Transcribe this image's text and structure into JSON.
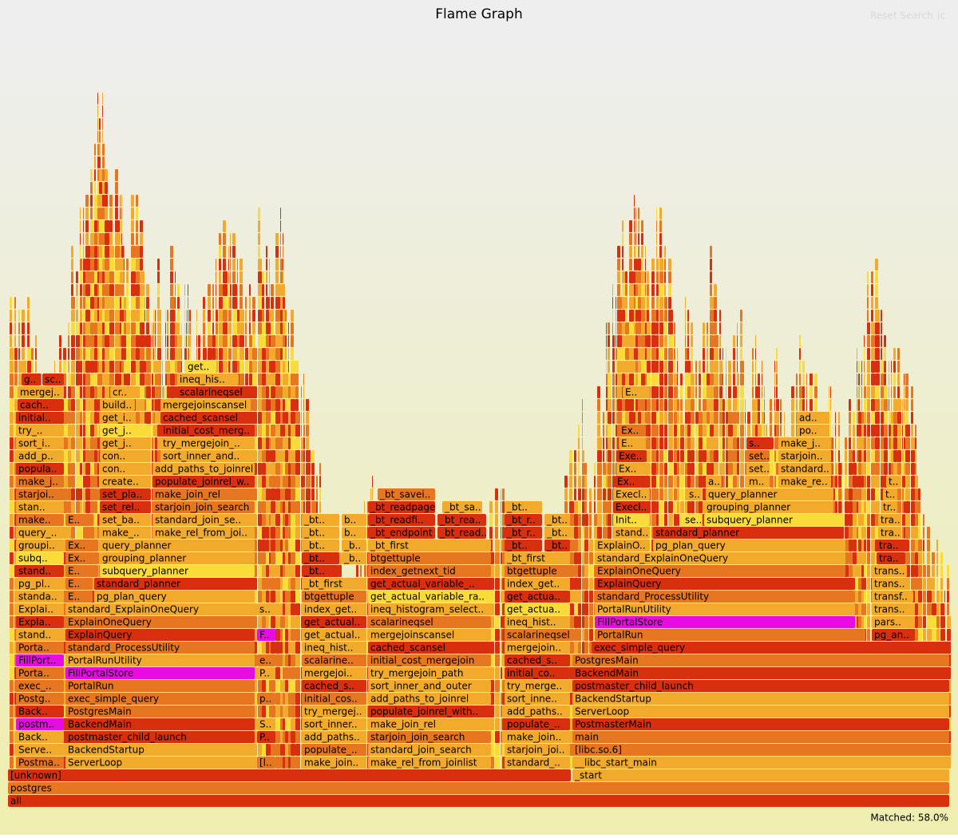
{
  "title": "Flame Graph",
  "reset_search": "Reset Search",
  "ignore_case": "ic",
  "matched": "Matched: 58.0%",
  "frames": [
    "all",
    "postgres",
    "[unknown]",
    "_start",
    "Postma..",
    "ServerLoop",
    "[l..",
    "make_join..",
    "make_rel_from_joinlist",
    "standard_..",
    "__libc_start_main",
    "Serve..",
    "BackendStartup",
    "populate_..",
    "standard_join_search",
    "starjoin_joi..",
    "[libc.so.6]",
    "Back..",
    "postmaster_child_launch",
    "P..",
    "add_paths..",
    "starjoin_join_search",
    "make_join..",
    "main",
    "postm..",
    "BackendMain",
    "S..",
    "sort_inner..",
    "make_join_rel",
    "populate_..",
    "PostmasterMain",
    "Back..",
    "PostgresMain",
    "try_mergej..",
    "populate_joinrel_with..",
    "add_paths..",
    "ServerLoop",
    "Postg..",
    "exec_simple_query",
    "p..",
    "initial_cos..",
    "add_paths_to_joinrel",
    "sort_inne..",
    "BackendStartup",
    "exec_..",
    "PortalRun",
    "cached_s..",
    "sort_inner_and_outer",
    "try_merge..",
    "postmaster_child_launch",
    "Porta..",
    "FillPortalStore",
    "P..",
    "mergejoi..",
    "try_mergejoin_path",
    "initial_co..",
    "BackendMain",
    "FillPort..",
    "PortalRunUtility",
    "e..",
    "scalarine..",
    "initial_cost_mergejoin",
    "cached_s..",
    "PostgresMain",
    "Porta..",
    "standard_ProcessUtility",
    "ineq_hist..",
    "cached_scansel",
    "mergejoin..",
    "exec_simple_query",
    "stand..",
    "ExplainQuery",
    "F..",
    "get_actual..",
    "mergejoinscansel",
    "scalarineqsel",
    "PortalRun",
    "pg_an..",
    "Expla..",
    "ExplainOneQuery",
    "get_actual..",
    "scalarineqsel",
    "ineq_hist..",
    "FillPortalStore",
    "pars..",
    "Explai..",
    "standard_ExplainOneQuery",
    "s..",
    "index_get..",
    "ineq_histogram_select..",
    "get_actua..",
    "PortalRunUtility",
    "trans..",
    "standa..",
    "E..",
    "pg_plan_query",
    "btgettuple",
    "get_actual_variable_ra..",
    "get_actua..",
    "standard_ProcessUtility",
    "transf..",
    "pg_pl..",
    "E..",
    "standard_planner",
    "_bt_first",
    "get_actual_variable_..",
    "index_get..",
    "ExplainQuery",
    "trans..",
    "stand..",
    "E..",
    "subquery_planner",
    "_bt..",
    "index_getnext_tid",
    "btgettuple",
    "ExplainOneQuery",
    "trans..",
    "subq..",
    "Ex..",
    "grouping_planner",
    "_bt..",
    "_b..",
    "btgettuple",
    "_bt_first",
    "standard_ExplainOneQuery",
    "tra..",
    "groupi..",
    "Ex..",
    "query_planner",
    "_bt..",
    "_b..",
    "_bt_first",
    "_bt..",
    "_bt..",
    "ExplainO..",
    "pg_plan_query",
    "tra..",
    "query_..",
    "make_..",
    "make_rel_from_joi..",
    "_bt..",
    "b..",
    "_bt_endpoint",
    "_bt_read..",
    "_bt_r..",
    "_bt..",
    "stand..",
    "standard_planner",
    "tra..",
    "make..",
    "E..",
    "set_ba..",
    "standard_join_se..",
    "_bt..",
    "b..",
    "_bt_readfi..",
    "_bt_rea..",
    "_bt_r..",
    "_bt..",
    "Init..",
    "se..",
    "subquery_planner",
    "tra..",
    "stan..",
    "set_rel..",
    "starjoin_join_search",
    "_bt_readpage",
    "_bt_sa..",
    "_bt..",
    "Execl..",
    "grouping_planner",
    "tr..",
    "starjoi..",
    "set_pla..",
    "make_join_rel",
    "_bt_savei..",
    "Execl..",
    "s..",
    "query_planner",
    "t..",
    "make_j..",
    "create..",
    "populate_joinrel_w..",
    "Ex..",
    "a..",
    "m..",
    "make_re..",
    "t..",
    "popula..",
    "con..",
    "add_paths_to_joinrel",
    "Ex..",
    "set..",
    "standard..",
    "add_p..",
    "con..",
    "sort_inner_and..",
    "Exe..",
    "set..",
    "starjoin..",
    "sort_i..",
    "get_j..",
    "try_mergejoin_..",
    "E..",
    "s..",
    "make_j..",
    "try_..",
    "get_j..",
    "initial_cost_merg..",
    "Ex..",
    "po..",
    "initial..",
    "get_i..",
    "cached_scansel",
    "ad..",
    "cach..",
    "build..",
    "mergejoinscansel",
    "mergej..",
    "cr..",
    "scalarineqsel",
    "E..",
    "g..",
    "sc..",
    "ineq_his..",
    "get.."
  ]
}
